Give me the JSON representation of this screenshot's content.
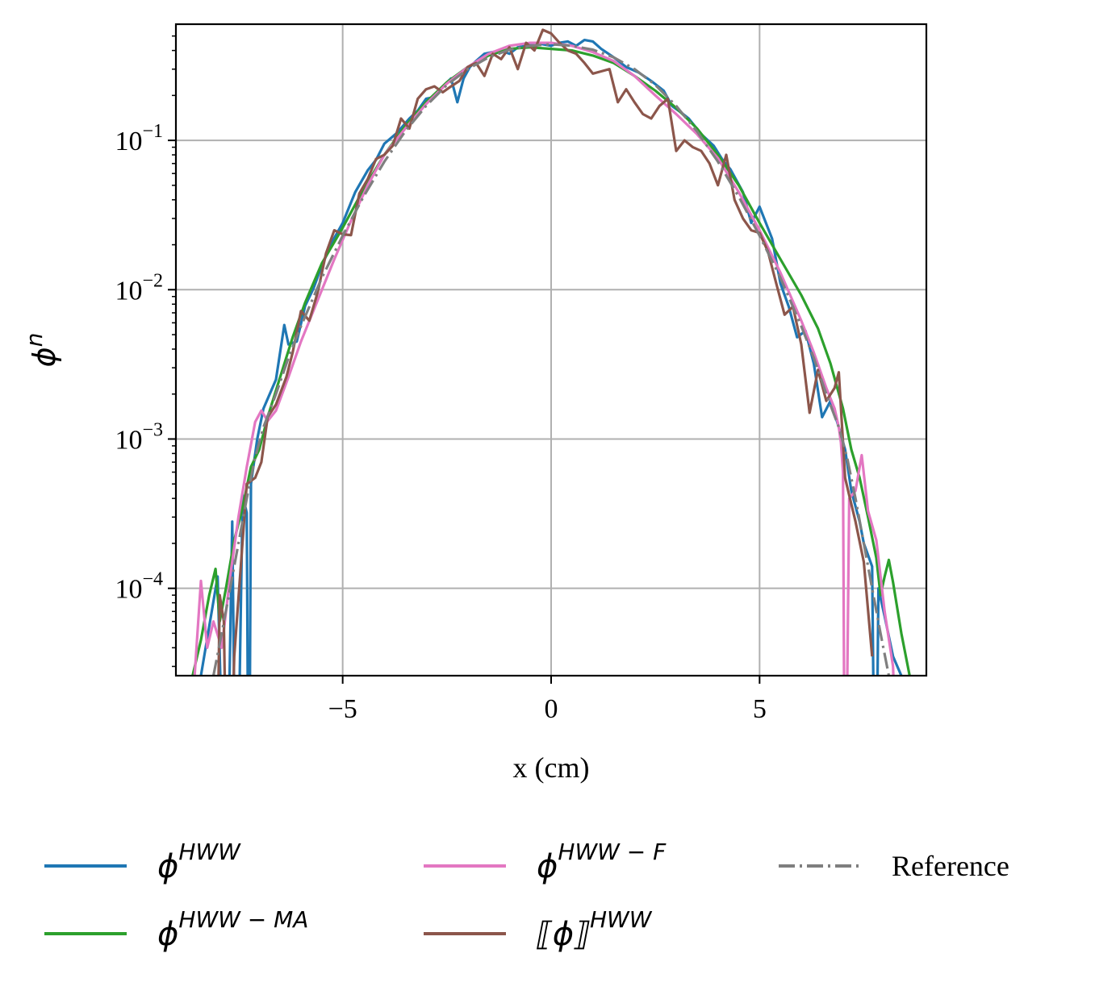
{
  "chart_data": {
    "type": "line",
    "title": "",
    "xlabel": "x (cm)",
    "ylabel": {
      "base": "ϕ",
      "sup": "n"
    },
    "xlim": [
      -9,
      9
    ],
    "ylim": [
      2.6e-05,
      0.6
    ],
    "yscale": "log",
    "grid": true,
    "legend_position": "bottom",
    "xticks": [
      {
        "value": -5,
        "label": "−5"
      },
      {
        "value": 0,
        "label": "0"
      },
      {
        "value": 5,
        "label": "5"
      }
    ],
    "yticks": [
      {
        "value": 0.0001,
        "base": "10",
        "exp": "−4"
      },
      {
        "value": 0.001,
        "base": "10",
        "exp": "−3"
      },
      {
        "value": 0.01,
        "base": "10",
        "exp": "−2"
      },
      {
        "value": 0.1,
        "base": "10",
        "exp": "−1"
      }
    ],
    "series": [
      {
        "key": "hww",
        "name": "ϕ",
        "name_sup": "HWW",
        "color": "#1f77b4",
        "dash": "solid",
        "x": [
          -9,
          -8.4,
          -8.0,
          -7.8,
          -7.65,
          -7.55,
          -7.4,
          -7.3,
          -7.25,
          -7.2,
          -7.05,
          -6.9,
          -6.6,
          -6.4,
          -6.3,
          -6.1,
          -5.9,
          -5.7,
          -5.5,
          -5.2,
          -5.0,
          -4.7,
          -4.4,
          -4.2,
          -4.0,
          -3.7,
          -3.4,
          -3.2,
          -3.0,
          -2.8,
          -2.6,
          -2.4,
          -2.25,
          -2.1,
          -1.95,
          -1.8,
          -1.6,
          -1.4,
          -1.2,
          -1.0,
          -0.8,
          -0.6,
          -0.4,
          -0.2,
          0.0,
          0.2,
          0.4,
          0.6,
          0.8,
          1.0,
          1.2,
          1.5,
          1.8,
          2.1,
          2.4,
          2.7,
          2.9,
          3.1,
          3.3,
          3.6,
          3.9,
          4.1,
          4.3,
          4.6,
          4.8,
          5.0,
          5.3,
          5.5,
          5.7,
          5.9,
          6.1,
          6.3,
          6.5,
          6.7,
          6.9,
          7.05,
          7.2,
          7.4,
          7.5,
          7.7,
          7.78,
          7.85,
          8.0,
          8.2,
          8.4,
          9
        ],
        "y": [
          1e-06,
          2.6e-05,
          0.00012,
          1e-06,
          0.00028,
          1e-06,
          0.00042,
          0.00032,
          1e-06,
          0.0005,
          0.001,
          0.0016,
          0.0025,
          0.0058,
          0.0043,
          0.0045,
          0.0078,
          0.0102,
          0.0145,
          0.0222,
          0.028,
          0.045,
          0.063,
          0.074,
          0.095,
          0.112,
          0.14,
          0.158,
          0.19,
          0.195,
          0.23,
          0.26,
          0.18,
          0.26,
          0.31,
          0.34,
          0.38,
          0.39,
          0.4,
          0.38,
          0.42,
          0.43,
          0.45,
          0.44,
          0.43,
          0.45,
          0.46,
          0.43,
          0.47,
          0.46,
          0.41,
          0.36,
          0.31,
          0.285,
          0.25,
          0.215,
          0.17,
          0.155,
          0.14,
          0.11,
          0.092,
          0.075,
          0.064,
          0.045,
          0.028,
          0.036,
          0.022,
          0.011,
          0.0077,
          0.0048,
          0.0053,
          0.0032,
          0.0014,
          0.0018,
          0.0012,
          0.00085,
          0.00045,
          0.00028,
          0.0002,
          0.00014,
          1e-06,
          0.0001,
          6.5e-05,
          3.5e-05,
          2.6e-05,
          1e-06
        ]
      },
      {
        "key": "hww_ma",
        "name": "ϕ",
        "name_sup": "HWW − MA",
        "color": "#2ca02c",
        "dash": "solid",
        "x": [
          -8.6,
          -8.4,
          -8.2,
          -8.05,
          -7.95,
          -7.8,
          -7.6,
          -7.4,
          -7.2,
          -7.0,
          -6.8,
          -6.5,
          -6.2,
          -5.9,
          -5.5,
          -5.0,
          -4.5,
          -4.0,
          -3.5,
          -3.0,
          -2.5,
          -2.0,
          -1.5,
          -1.0,
          -0.5,
          0.0,
          0.5,
          1.0,
          1.5,
          2.0,
          2.5,
          3.0,
          3.5,
          4.0,
          4.5,
          5.0,
          5.5,
          6.0,
          6.4,
          6.7,
          7.0,
          7.2,
          7.4,
          7.6,
          7.8,
          7.9,
          8.0,
          8.1,
          8.2,
          8.4,
          8.6
        ],
        "y": [
          2.6e-05,
          4.5e-05,
          9e-05,
          0.000135,
          6e-05,
          0.0001,
          0.00021,
          0.00035,
          0.00065,
          0.00085,
          0.0014,
          0.0026,
          0.0048,
          0.0082,
          0.015,
          0.026,
          0.047,
          0.08,
          0.125,
          0.18,
          0.245,
          0.31,
          0.37,
          0.41,
          0.42,
          0.41,
          0.4,
          0.37,
          0.33,
          0.27,
          0.215,
          0.165,
          0.12,
          0.08,
          0.05,
          0.028,
          0.016,
          0.0092,
          0.0055,
          0.0032,
          0.0016,
          0.00085,
          0.00055,
          0.0003,
          0.00016,
          9e-05,
          0.00012,
          0.000155,
          0.00011,
          5e-05,
          2.6e-05
        ]
      },
      {
        "key": "hww_f",
        "name": "ϕ",
        "name_sup": "HWW − F",
        "color": "#e377c2",
        "dash": "solid",
        "x": [
          -8.8,
          -8.55,
          -8.4,
          -8.25,
          -8.1,
          -7.9,
          -7.7,
          -7.5,
          -7.3,
          -7.1,
          -6.95,
          -6.8,
          -6.6,
          -6.3,
          -6.0,
          -5.6,
          -5.2,
          -4.8,
          -4.4,
          -4.0,
          -3.5,
          -3.0,
          -2.5,
          -2.0,
          -1.5,
          -1.0,
          -0.5,
          0.0,
          0.5,
          1.0,
          1.5,
          2.0,
          2.5,
          3.0,
          3.5,
          4.0,
          4.5,
          5.0,
          5.5,
          6.0,
          6.3,
          6.6,
          6.8,
          6.9,
          6.95,
          7.0,
          7.05,
          7.15,
          7.3,
          7.45,
          7.6,
          7.8,
          8.0,
          8.2,
          8.4
        ],
        "y": [
          1e-06,
          2.6e-05,
          0.000112,
          4e-05,
          6e-05,
          4e-05,
          0.00012,
          0.0003,
          0.00065,
          0.0013,
          0.00155,
          0.00132,
          0.00155,
          0.0026,
          0.0045,
          0.0085,
          0.016,
          0.029,
          0.05,
          0.08,
          0.12,
          0.175,
          0.24,
          0.31,
          0.38,
          0.43,
          0.45,
          0.45,
          0.43,
          0.39,
          0.34,
          0.27,
          0.2,
          0.15,
          0.11,
          0.076,
          0.045,
          0.025,
          0.013,
          0.0062,
          0.0038,
          0.0022,
          0.0016,
          0.0012,
          0.00095,
          0.0006,
          1e-06,
          0.0004,
          0.00045,
          0.00078,
          0.00033,
          0.00021,
          7e-05,
          3e-05,
          1e-06
        ]
      },
      {
        "key": "hww_avg",
        "name": "⟦ϕ⟧",
        "name_sup": "HWW",
        "color": "#8c564b",
        "dash": "solid",
        "x": [
          -8.1,
          -8.05,
          -7.95,
          -7.85,
          -7.75,
          -7.6,
          -7.3,
          -7.1,
          -6.95,
          -6.8,
          -6.6,
          -6.35,
          -6.2,
          -6.0,
          -5.8,
          -5.6,
          -5.4,
          -5.2,
          -5.0,
          -4.8,
          -4.6,
          -4.4,
          -4.2,
          -4.0,
          -3.8,
          -3.6,
          -3.4,
          -3.2,
          -3.0,
          -2.8,
          -2.6,
          -2.4,
          -2.2,
          -2.0,
          -1.8,
          -1.6,
          -1.4,
          -1.2,
          -1.0,
          -0.8,
          -0.6,
          -0.4,
          -0.2,
          0.0,
          0.2,
          0.4,
          0.6,
          0.8,
          1.0,
          1.2,
          1.4,
          1.6,
          1.8,
          2.0,
          2.2,
          2.4,
          2.6,
          2.8,
          3.0,
          3.2,
          3.4,
          3.6,
          3.8,
          4.0,
          4.2,
          4.4,
          4.6,
          4.8,
          5.0,
          5.2,
          5.4,
          5.6,
          5.8,
          6.0,
          6.2,
          6.4,
          6.6,
          6.8,
          6.9,
          7.0,
          7.05,
          7.15,
          7.3,
          7.5,
          7.7
        ],
        "y": [
          2.6e-05,
          1e-06,
          9e-05,
          6e-05,
          1e-06,
          3.5e-05,
          0.0005,
          0.00055,
          0.0007,
          0.0014,
          0.0017,
          0.0026,
          0.0038,
          0.0072,
          0.0062,
          0.0096,
          0.0175,
          0.025,
          0.0235,
          0.0232,
          0.044,
          0.055,
          0.075,
          0.08,
          0.092,
          0.14,
          0.12,
          0.19,
          0.22,
          0.23,
          0.21,
          0.23,
          0.25,
          0.31,
          0.33,
          0.27,
          0.38,
          0.35,
          0.42,
          0.3,
          0.45,
          0.4,
          0.55,
          0.52,
          0.45,
          0.4,
          0.38,
          0.33,
          0.28,
          0.29,
          0.3,
          0.18,
          0.22,
          0.18,
          0.15,
          0.14,
          0.17,
          0.19,
          0.085,
          0.1,
          0.09,
          0.085,
          0.07,
          0.05,
          0.08,
          0.04,
          0.03,
          0.025,
          0.024,
          0.018,
          0.011,
          0.0068,
          0.0077,
          0.0043,
          0.0015,
          0.0029,
          0.0018,
          0.0022,
          0.0028,
          0.00095,
          0.00055,
          0.00042,
          0.00028,
          0.00015,
          3.5e-05
        ]
      },
      {
        "key": "reference",
        "name": "Reference",
        "name_sup": "",
        "color": "#7f7f7f",
        "dash": "dashdot",
        "x": [
          -8.1,
          -7.9,
          -7.7,
          -7.5,
          -7.3,
          -7.1,
          -6.9,
          -6.6,
          -6.3,
          -6.0,
          -5.5,
          -5.0,
          -4.5,
          -4.0,
          -3.5,
          -3.0,
          -2.5,
          -2.0,
          -1.5,
          -1.0,
          -0.5,
          0.0,
          0.5,
          1.0,
          1.5,
          2.0,
          2.5,
          3.0,
          3.5,
          4.0,
          4.5,
          5.0,
          5.5,
          6.0,
          6.3,
          6.6,
          6.9,
          7.1,
          7.3,
          7.5,
          7.7,
          7.9,
          8.1,
          8.3
        ],
        "y": [
          2.6e-05,
          5e-05,
          0.0001,
          0.0002,
          0.0004,
          0.00075,
          0.0012,
          0.002,
          0.0035,
          0.0057,
          0.012,
          0.023,
          0.042,
          0.072,
          0.115,
          0.17,
          0.235,
          0.3,
          0.36,
          0.405,
          0.43,
          0.44,
          0.43,
          0.405,
          0.36,
          0.3,
          0.235,
          0.17,
          0.115,
          0.072,
          0.042,
          0.023,
          0.012,
          0.0057,
          0.0035,
          0.002,
          0.0012,
          0.00075,
          0.0004,
          0.0002,
          0.0001,
          5e-05,
          2.6e-05,
          1e-06
        ]
      }
    ]
  }
}
